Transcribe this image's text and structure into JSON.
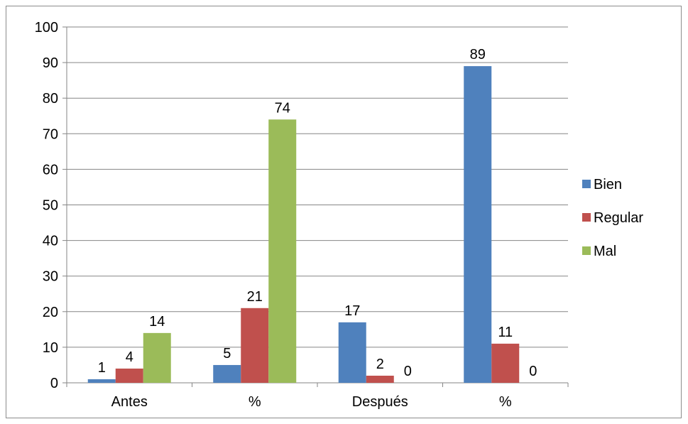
{
  "chart_data": {
    "type": "bar",
    "categories": [
      "Antes",
      "%",
      "Después",
      "%"
    ],
    "series": [
      {
        "name": "Bien",
        "color": "#4F81BD",
        "values": [
          1,
          5,
          17,
          89
        ]
      },
      {
        "name": "Regular",
        "color": "#C0504D",
        "values": [
          4,
          21,
          2,
          11
        ]
      },
      {
        "name": "Mal",
        "color": "#9BBB59",
        "values": [
          14,
          74,
          0,
          0
        ]
      }
    ],
    "ylim": [
      0,
      100
    ],
    "yticks": [
      0,
      10,
      20,
      30,
      40,
      50,
      60,
      70,
      80,
      90,
      100
    ],
    "grid": true,
    "legend_position": "right",
    "data_labels": true
  }
}
